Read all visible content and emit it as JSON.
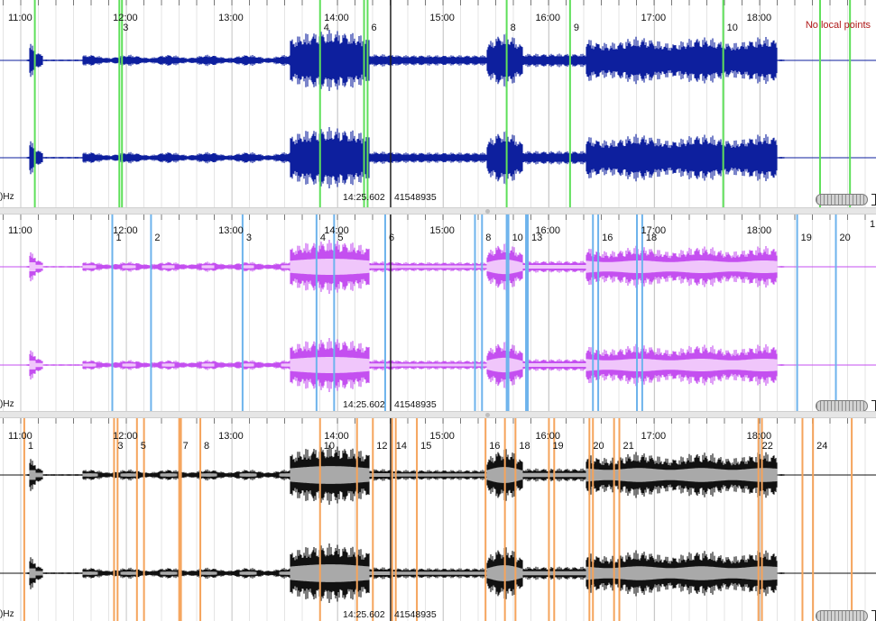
{
  "panes": [
    {
      "id": "pane-1",
      "color": "#0d1f9e",
      "marker_color": "#5fe05a",
      "marker_label_row": "top",
      "markers": [
        {
          "label": "",
          "t": "11:08"
        },
        {
          "label": "3",
          "t": "11:56"
        },
        {
          "label": "",
          "t": "11:57.5"
        },
        {
          "label": "4",
          "t": "13:50"
        },
        {
          "label": "6",
          "t": "14:17"
        },
        {
          "label": "",
          "t": "14:15"
        },
        {
          "label": "8",
          "t": "15:36"
        },
        {
          "label": "9",
          "t": "16:12"
        },
        {
          "label": "10",
          "t": "17:39"
        },
        {
          "label": "",
          "t": "18:34"
        },
        {
          "label": "",
          "t": "18:51"
        }
      ]
    },
    {
      "id": "pane-2",
      "color": "#c44ff0",
      "marker_color": "#6db3ec",
      "marker_label_row": "middle",
      "markers": [
        {
          "label": "1",
          "t": "11:52"
        },
        {
          "label": "2",
          "t": "12:14"
        },
        {
          "label": "3",
          "t": "13:06"
        },
        {
          "label": "4",
          "t": "13:48"
        },
        {
          "label": "5",
          "t": "13:58"
        },
        {
          "label": "6",
          "t": "14:27"
        },
        {
          "label": "",
          "t": "15:18"
        },
        {
          "label": "8",
          "t": "15:22"
        },
        {
          "label": "",
          "t": "15:36"
        },
        {
          "label": "10",
          "t": "15:37"
        },
        {
          "label": "13",
          "t": "15:48"
        },
        {
          "label": "",
          "t": "15:47"
        },
        {
          "label": "",
          "t": "16:25"
        },
        {
          "label": "16",
          "t": "16:28"
        },
        {
          "label": "",
          "t": "16:50"
        },
        {
          "label": "18",
          "t": "16:53"
        },
        {
          "label": "19",
          "t": "18:21"
        },
        {
          "label": "20",
          "t": "18:43"
        }
      ],
      "edge_marker_label": "1"
    },
    {
      "id": "pane-3",
      "color": "#111111",
      "marker_color": "#f5a45c",
      "marker_label_row": "middle",
      "markers": [
        {
          "label": "1",
          "t": "11:02"
        },
        {
          "label": "3",
          "t": "11:53"
        },
        {
          "label": "",
          "t": "11:55"
        },
        {
          "label": "5",
          "t": "12:06"
        },
        {
          "label": "",
          "t": "12:10"
        },
        {
          "label": "7",
          "t": "12:30"
        },
        {
          "label": "",
          "t": "12:31"
        },
        {
          "label": "8",
          "t": "12:42"
        },
        {
          "label": "10",
          "t": "13:50"
        },
        {
          "label": "",
          "t": "14:11"
        },
        {
          "label": "12",
          "t": "14:20"
        },
        {
          "label": "14",
          "t": "14:31"
        },
        {
          "label": "",
          "t": "14:33"
        },
        {
          "label": "15",
          "t": "14:45"
        },
        {
          "label": "16",
          "t": "15:24"
        },
        {
          "label": "",
          "t": "15:35"
        },
        {
          "label": "18",
          "t": "15:41"
        },
        {
          "label": "19",
          "t": "16:00"
        },
        {
          "label": "",
          "t": "16:03"
        },
        {
          "label": "20",
          "t": "16:23"
        },
        {
          "label": "",
          "t": "16:25"
        },
        {
          "label": "21",
          "t": "16:40"
        },
        {
          "label": "",
          "t": "16:37"
        },
        {
          "label": "22",
          "t": "17:59"
        },
        {
          "label": "",
          "t": "18:01"
        },
        {
          "label": "",
          "t": "18:24"
        },
        {
          "label": "24",
          "t": "18:30"
        },
        {
          "label": "",
          "t": "18:52"
        }
      ]
    }
  ],
  "time_ticks": [
    "11:00",
    "12:00",
    "13:00",
    "14:00",
    "15:00",
    "16:00",
    "17:00",
    "18:00"
  ],
  "frequency_label": "Hz",
  "cursor": {
    "time": "14:25.602",
    "sample": "41548935"
  },
  "notice": "No local points"
}
